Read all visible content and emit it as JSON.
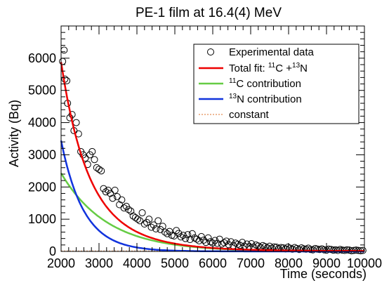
{
  "chart_data": {
    "type": "scatter",
    "title": "PE-1 film at 16.4(4) MeV",
    "xlabel": "Time (seconds)",
    "ylabel": "Activity (Bq)",
    "xlim": [
      2000,
      10000
    ],
    "ylim": [
      0,
      7000
    ],
    "x_ticks": [
      2000,
      3000,
      4000,
      5000,
      6000,
      7000,
      8000,
      9000,
      10000
    ],
    "y_ticks": [
      0,
      1000,
      2000,
      3000,
      4000,
      5000,
      6000
    ],
    "grid": false,
    "legend_position": "top-right",
    "legend": [
      {
        "key": "data",
        "label": "Experimental data"
      },
      {
        "key": "total",
        "label_pre": "Total fit: ",
        "iso1_mass": "11",
        "iso1_el": "C",
        "join": " +",
        "iso2_mass": "13",
        "iso2_el": "N"
      },
      {
        "key": "c11",
        "mass": "11",
        "el": "C",
        "suffix": " contribution"
      },
      {
        "key": "n13",
        "mass": "13",
        "el": "N",
        "suffix": " contribution"
      },
      {
        "key": "const",
        "label": "constant"
      }
    ],
    "colors": {
      "data": "#000000",
      "total": "#ee0000",
      "c11": "#66cc44",
      "n13": "#1133dd",
      "constant": "#e8a070"
    },
    "series": [
      {
        "name": "Experimental data",
        "kind": "points",
        "x": [
          2040,
          2080,
          2100,
          2150,
          2170,
          2230,
          2290,
          2340,
          2400,
          2460,
          2520,
          2580,
          2640,
          2700,
          2760,
          2820,
          2880,
          2940,
          3000,
          3060,
          3120,
          3180,
          3240,
          3300,
          3360,
          3420,
          3480,
          3540,
          3600,
          3660,
          3720,
          3780,
          3840,
          3900,
          3960,
          4020,
          4080,
          4140,
          4200,
          4260,
          4320,
          4380,
          4440,
          4500,
          4560,
          4620,
          4680,
          4740,
          4800,
          4860,
          4920,
          4980,
          5040,
          5100,
          5160,
          5220,
          5280,
          5340,
          5400,
          5460,
          5520,
          5580,
          5640,
          5700,
          5760,
          5820,
          5880,
          5940,
          6000,
          6060,
          6120,
          6180,
          6240,
          6300,
          6360,
          6420,
          6480,
          6540,
          6600,
          6660,
          6720,
          6780,
          6840,
          6900,
          6960,
          7020,
          7080,
          7140,
          7200,
          7260,
          7320,
          7380,
          7440,
          7500,
          7560,
          7620,
          7680,
          7740,
          7800,
          7860,
          7920,
          7980,
          8040,
          8100,
          8160,
          8220,
          8280,
          8340,
          8400,
          8460,
          8520,
          8580,
          8640,
          8700,
          8760,
          8820,
          8880,
          8940,
          9000,
          9060,
          9120,
          9180,
          9240,
          9300,
          9360,
          9420,
          9480,
          9540,
          9600,
          9660,
          9720,
          9780,
          9840,
          9900,
          9960
        ],
        "y": [
          5900,
          6250,
          5350,
          5300,
          4600,
          4150,
          4250,
          3750,
          4000,
          3650,
          3100,
          3000,
          2900,
          2700,
          3000,
          3100,
          2850,
          2600,
          2550,
          2500,
          1950,
          1850,
          1900,
          1800,
          1650,
          1900,
          1700,
          1450,
          1600,
          1350,
          1400,
          1300,
          1250,
          1100,
          1050,
          1000,
          950,
          1200,
          850,
          900,
          1000,
          750,
          820,
          700,
          950,
          680,
          780,
          600,
          550,
          620,
          500,
          480,
          650,
          560,
          450,
          500,
          400,
          520,
          370,
          550,
          420,
          380,
          330,
          460,
          350,
          280,
          420,
          300,
          260,
          340,
          250,
          380,
          230,
          270,
          320,
          210,
          300,
          180,
          260,
          220,
          190,
          280,
          160,
          230,
          150,
          240,
          130,
          200,
          170,
          120,
          180,
          150,
          110,
          160,
          100,
          140,
          130,
          90,
          120,
          110,
          80,
          130,
          100,
          70,
          120,
          90,
          60,
          110,
          80,
          70,
          100,
          60,
          50,
          90,
          70,
          60,
          80,
          50,
          40,
          70,
          60,
          40,
          50,
          30,
          60,
          40,
          30,
          50,
          40,
          20,
          30,
          40,
          30,
          20,
          30
        ]
      },
      {
        "name": "Total fit",
        "kind": "curve",
        "model": "exp_sum",
        "A11": 2430,
        "T11": 1223,
        "A13": 3440,
        "T13": 598,
        "C": 10,
        "x_start": 2000,
        "x_end": 10000
      },
      {
        "name": "11C contribution",
        "kind": "curve",
        "model": "exp",
        "A": 2430,
        "T": 1223,
        "x_start": 2000,
        "x_end": 10000
      },
      {
        "name": "13N contribution",
        "kind": "curve",
        "model": "exp",
        "A": 3440,
        "T": 598,
        "x_start": 2000,
        "x_end": 10000
      },
      {
        "name": "constant",
        "kind": "hline",
        "value": 10
      }
    ]
  }
}
